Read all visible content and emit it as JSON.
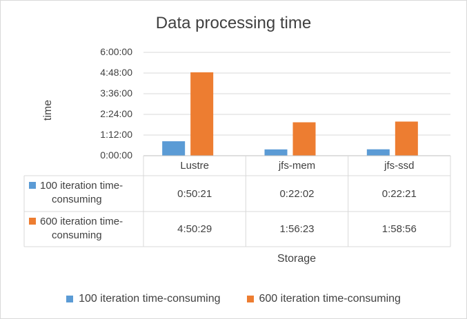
{
  "chart_data": {
    "type": "bar",
    "title": "Data processing time",
    "xlabel": "Storage",
    "ylabel": "time",
    "categories": [
      "Lustre",
      "jfs-mem",
      "jfs-ssd"
    ],
    "yticks": [
      "0:00:00",
      "1:12:00",
      "2:24:00",
      "3:36:00",
      "4:48:00",
      "6:00:00"
    ],
    "ylim_seconds": [
      0,
      21600
    ],
    "series": [
      {
        "name": "100 iteration time-consuming",
        "color": "#5b9bd5",
        "labels": [
          "0:50:21",
          "0:22:02",
          "0:22:21"
        ],
        "values_seconds": [
          3021,
          1322,
          1341
        ]
      },
      {
        "name": "600 iteration time-consuming",
        "color": "#ed7d31",
        "labels": [
          "4:50:29",
          "1:56:23",
          "1:58:56"
        ],
        "values_seconds": [
          17429,
          6983,
          7136
        ]
      }
    ],
    "grid": true,
    "legend_position": "bottom",
    "data_table": true
  },
  "table_row_labels": [
    [
      "100 iteration time-",
      "consuming"
    ],
    [
      "600 iteration time-",
      "consuming"
    ]
  ]
}
